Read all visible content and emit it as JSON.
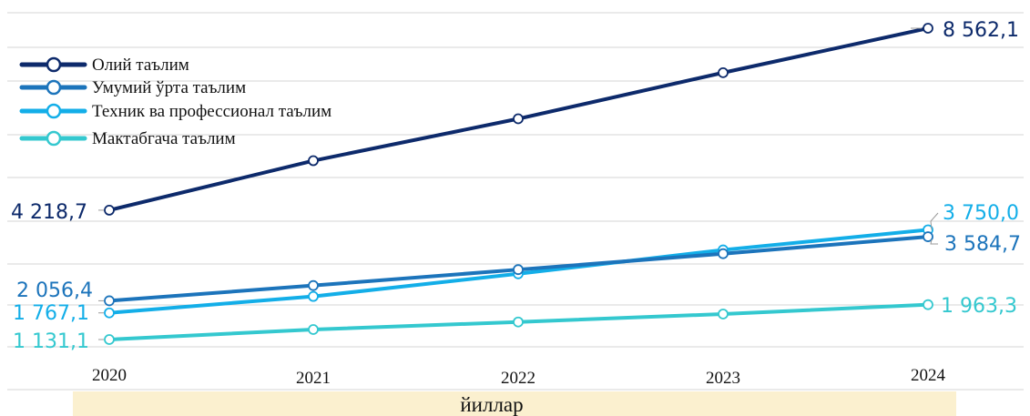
{
  "chart_data": {
    "type": "line",
    "categories": [
      "2020",
      "2021",
      "2022",
      "2023",
      "2024"
    ],
    "xlabel": "йиллар",
    "grid": true,
    "legend_position": "top-left",
    "series": [
      {
        "name": "Олий таълим",
        "color": "#0d2a6b",
        "values": [
          4218.7,
          5400,
          6400,
          7500,
          8562.1
        ],
        "labels": {
          "first": "4 218,7",
          "last": "8 562,1"
        }
      },
      {
        "name": "Умумий ўрта таълим",
        "color": "#1c74bb",
        "values": [
          2056.4,
          2420,
          2800,
          3180,
          3584.7
        ],
        "labels": {
          "first": "2 056,4",
          "last": "3 584,7"
        }
      },
      {
        "name": "Техник ва профессионал таълим",
        "color": "#13aee8",
        "values": [
          1767.1,
          2160,
          2700,
          3270,
          3750.0
        ],
        "labels": {
          "first": "1 767,1",
          "last": "3 750,0"
        }
      },
      {
        "name": "Мактабгача таълим",
        "color": "#34c8cf",
        "values": [
          1131.1,
          1370,
          1550,
          1740,
          1963.3
        ],
        "labels": {
          "first": "1 131,1",
          "last": "1 963,3"
        }
      }
    ],
    "xaxis_band_color": "#fbf0cf"
  }
}
